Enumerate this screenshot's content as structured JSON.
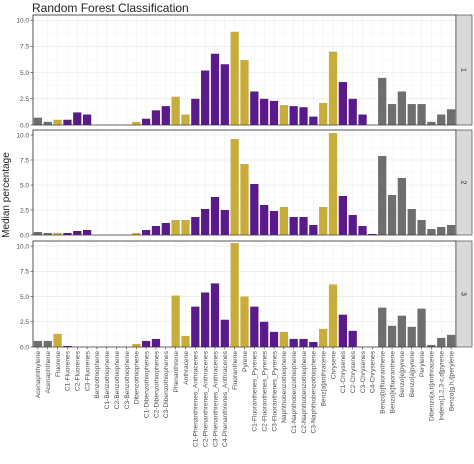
{
  "chart_data": {
    "type": "bar",
    "title": "Random Forest Classification",
    "xlabel": "",
    "ylabel": "Median percentage",
    "ylim": [
      0,
      10.5
    ],
    "yticks": [
      0.0,
      2.5,
      5.0,
      7.5,
      10.0
    ],
    "ytick_labels": [
      "0.0",
      "2.5",
      "5.0",
      "7.5",
      "10.0"
    ],
    "grid": true,
    "legend": "none",
    "colors": {
      "grey": "#6e6e6e",
      "gold": "#c8ad3c",
      "purple": "#5a1a8a"
    },
    "categories": [
      "Acenaphthylene",
      "Acenaphthene",
      "Fluorene",
      "C1-Fluorenes",
      "C2-Fluorenes",
      "C3-Fluorenes",
      "Benzothiophene",
      "C1-Benzothiophene",
      "C2-Benzothiophene",
      "C3-Benzothiophene",
      "Dibenzothiophene",
      "C1-Dibenzothiophenes",
      "C2-Dibenzothiophenes",
      "C3-Dibenzothiophenes",
      "Phenanthrene",
      "Anthracene",
      "C1-Phenanthrenes_Anthracenes",
      "C2-Phenanthrenes_Anthracenes",
      "C3-Phenanthrenes_Anthracenes",
      "C4-Phenanthrenes_Anthracenes",
      "Fluoranthene",
      "Pyrene",
      "C1-Fluoranthenes_Pyrenes",
      "C2-Fluoranthenes_Pyrenes",
      "C3-Fluoranthenes_Pyrenes",
      "Naphthobenzothiophene",
      "C1-Naphthobenzothiophene",
      "C2-Naphthobenzothiophene",
      "C3-Naphthobenzothiophene",
      "Benz[a]anthracene",
      "Chrysene",
      "C1-Chrysenes",
      "C2-Chrysenes",
      "C3-Chrysenes",
      "C4-Chrysenes",
      "Benzo[b]fluoranthene",
      "Benzo[k]fluoranthene",
      "Benzo[e]pyrene",
      "Benzo[a]pyrene",
      "Perylene",
      "Dibenzo[a,h]anthracene",
      "Indeno[1,2,3-c,d]pyrene",
      "Benzo[g,h,i]perylene"
    ],
    "category_colors": [
      "grey",
      "grey",
      "gold",
      "purple",
      "purple",
      "purple",
      "purple",
      "purple",
      "purple",
      "purple",
      "gold",
      "purple",
      "purple",
      "purple",
      "gold",
      "gold",
      "purple",
      "purple",
      "purple",
      "purple",
      "gold",
      "gold",
      "purple",
      "purple",
      "purple",
      "gold",
      "purple",
      "purple",
      "purple",
      "gold",
      "gold",
      "purple",
      "purple",
      "purple",
      "purple",
      "grey",
      "grey",
      "grey",
      "grey",
      "grey",
      "grey",
      "grey",
      "grey"
    ],
    "series": [
      {
        "name": "1",
        "values": [
          0.7,
          0.3,
          0.5,
          0.5,
          1.2,
          1.0,
          0,
          0,
          0,
          0,
          0.3,
          0.6,
          1.4,
          1.8,
          2.7,
          1.0,
          2.5,
          5.2,
          6.8,
          5.8,
          8.9,
          6.2,
          3.2,
          2.5,
          2.3,
          1.9,
          1.8,
          1.7,
          0.8,
          2.1,
          7.0,
          4.1,
          2.5,
          1.0,
          0,
          4.5,
          2.0,
          3.2,
          2.0,
          2.0,
          0.3,
          1.0,
          1.5
        ]
      },
      {
        "name": "2",
        "values": [
          0.3,
          0.2,
          0.2,
          0.2,
          0.4,
          0.5,
          0,
          0,
          0,
          0,
          0.2,
          0.5,
          0.9,
          1.2,
          1.5,
          1.5,
          1.8,
          2.6,
          3.8,
          2.5,
          9.6,
          7.1,
          5.1,
          3.0,
          2.4,
          2.8,
          1.8,
          1.8,
          1.0,
          2.8,
          10.2,
          3.9,
          2.0,
          0.9,
          0.1,
          7.9,
          4.0,
          5.7,
          2.6,
          1.5,
          0.6,
          0.8,
          1.0
        ]
      },
      {
        "name": "3",
        "values": [
          0.6,
          0.6,
          1.3,
          0.1,
          0,
          0,
          0,
          0,
          0,
          0,
          0.3,
          0.6,
          0.8,
          0,
          5.1,
          1.1,
          4.0,
          5.4,
          6.3,
          2.7,
          10.3,
          5.0,
          4.0,
          2.5,
          1.5,
          1.5,
          0.8,
          0.8,
          0.5,
          1.8,
          6.2,
          3.2,
          1.6,
          0,
          0,
          3.9,
          2.1,
          3.1,
          2.0,
          3.8,
          0.2,
          0.9,
          1.2
        ]
      }
    ]
  }
}
